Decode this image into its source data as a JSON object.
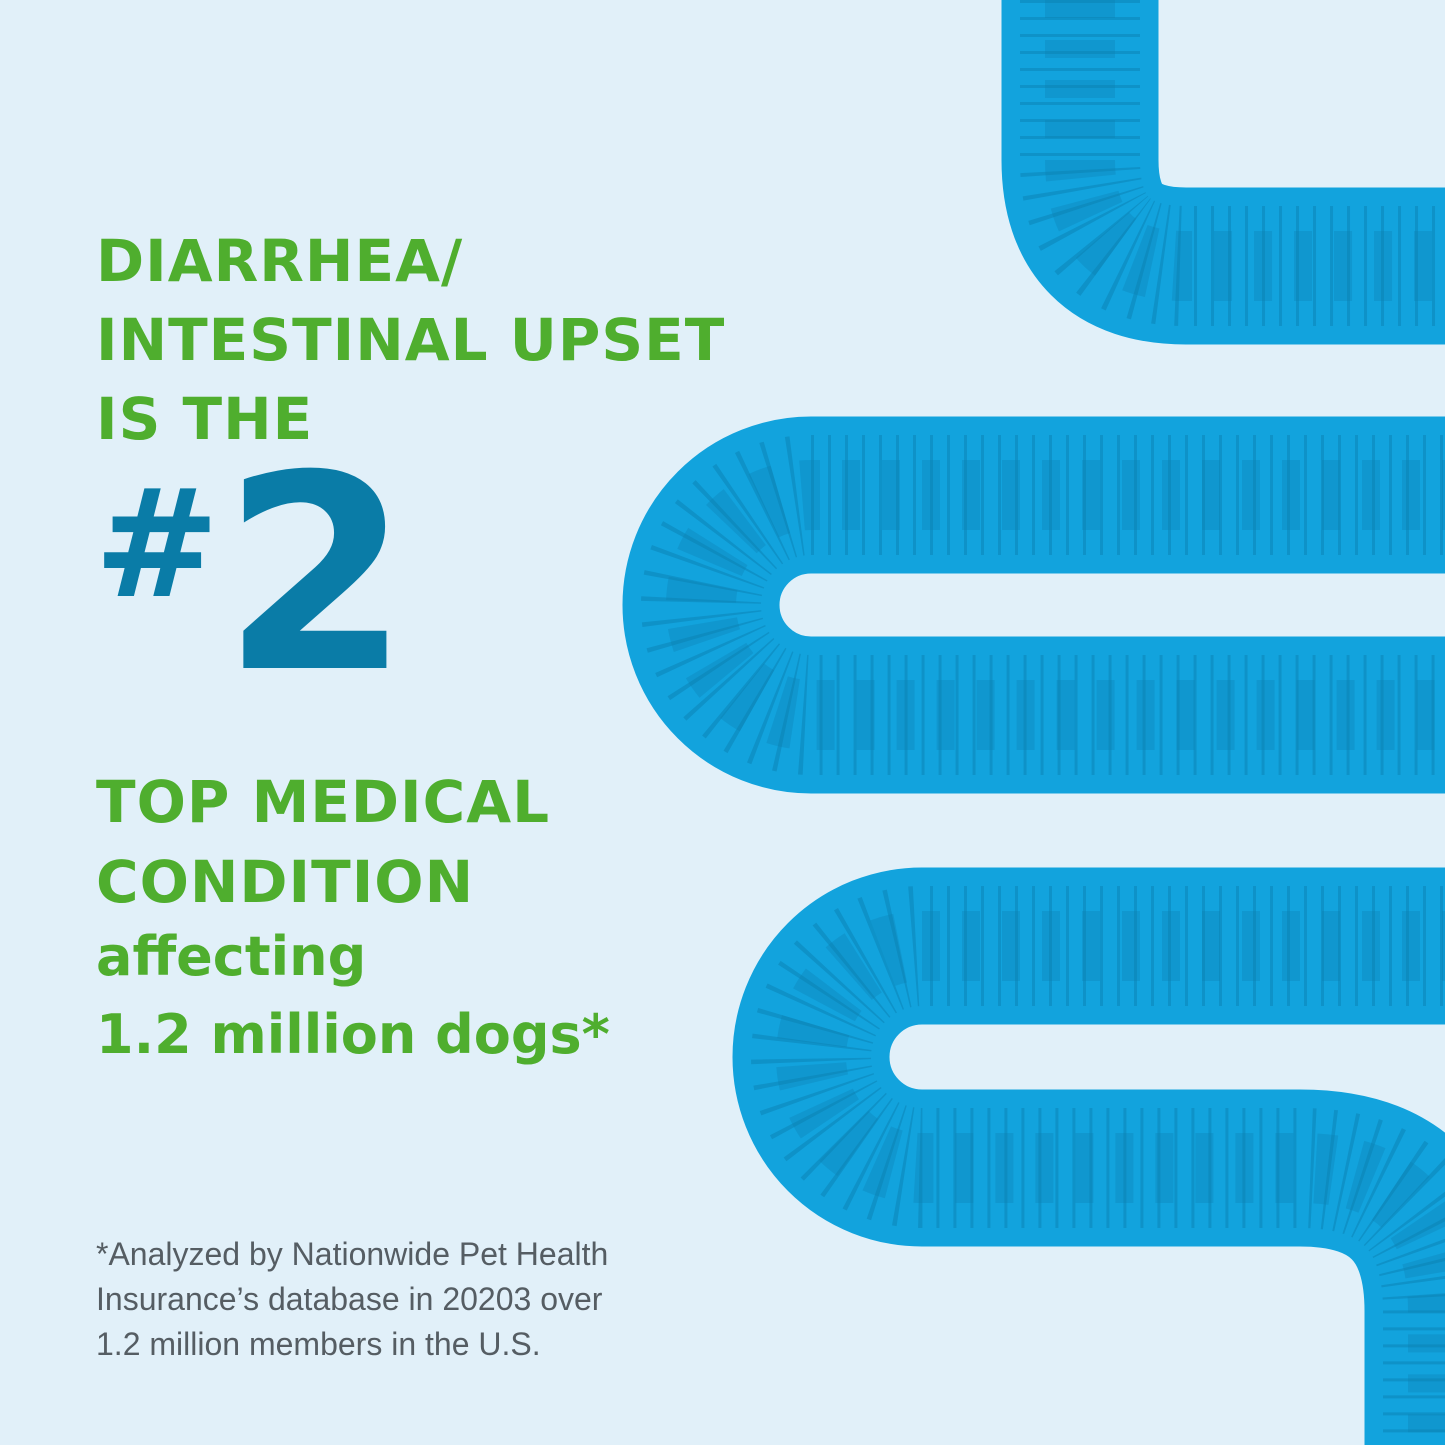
{
  "headline_top": [
    "DIARRHEA/",
    "INTESTINAL UPSET",
    "IS THE"
  ],
  "rank": {
    "hash": "#",
    "number": "2"
  },
  "headline_bottom": [
    "TOP MEDICAL",
    "CONDITION"
  ],
  "subline": [
    "affecting",
    "1.2 million dogs*"
  ],
  "footnote": [
    "*Analyzed by Nationwide Pet Health",
    "Insurance’s database in 20203 over",
    "1.2 million members in the U.S."
  ],
  "colors": {
    "background": "#e1f0f9",
    "headline": "#4fae2e",
    "rank": "#0a7ca7",
    "intestine": "#12a3dd",
    "pattern": "#0c7fb0",
    "footnote": "#555d63"
  },
  "illustration": "intestine-graphic"
}
